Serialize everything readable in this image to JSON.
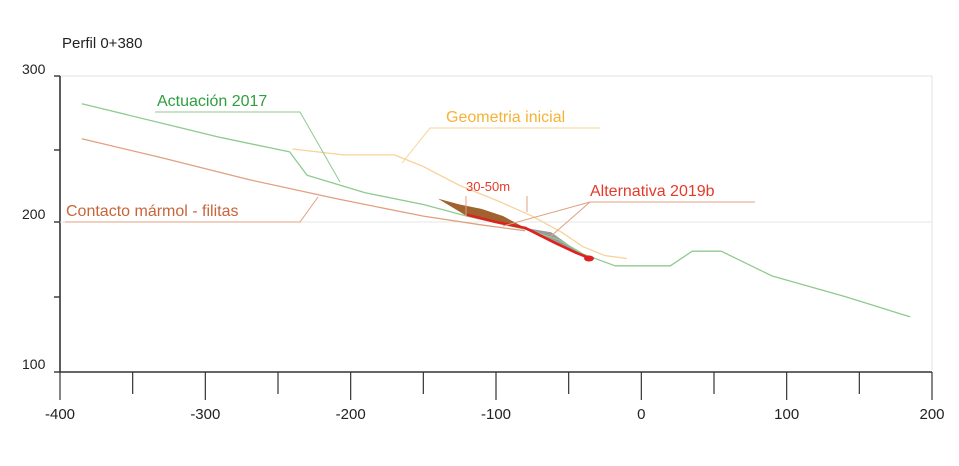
{
  "title": "Perfil 0+380",
  "y_tick_labels": [
    "300",
    "200",
    "100"
  ],
  "x_tick_labels": [
    "-400",
    "-300",
    "-200",
    "-100",
    "0",
    "100",
    "200"
  ],
  "annotations": {
    "actuacion": "Actuación 2017",
    "geometria": "Geometria inicial",
    "alternativa": "Alternativa 2019b",
    "contacto": "Contacto mármol -  filitas",
    "rango": "30-50m"
  },
  "colors": {
    "actuacion": "#2e9e3e",
    "geometria": "#f5b335",
    "alternativa": "#e53a2a",
    "contacto": "#c8643a",
    "actuacion_line": "#8fca8f",
    "geometria_line": "#f7d39a",
    "contacto_line": "#e0a080",
    "fill_brown": "#a0622e",
    "fill_gray": "#9a9a9a",
    "alternativa_line": "#e02020"
  },
  "chart_data": {
    "type": "line",
    "title": "Perfil 0+380",
    "xlabel": "",
    "ylabel": "",
    "xlim": [
      -400,
      200
    ],
    "ylim": [
      100,
      300
    ],
    "x_ticks": [
      -400,
      -300,
      -200,
      -100,
      0,
      100,
      200
    ],
    "y_ticks": [
      100,
      200,
      300
    ],
    "grid": false,
    "series": [
      {
        "name": "Actuación 2017",
        "color": "#8fca8f",
        "x": [
          -385,
          -290,
          -242,
          -230,
          -190,
          -150,
          -120,
          -80,
          -57,
          -40,
          -18,
          20,
          35,
          55,
          90,
          140,
          185
        ],
        "y": [
          281,
          258,
          248,
          232,
          220,
          212,
          204,
          195,
          188,
          178,
          170,
          170,
          180,
          180,
          163,
          149,
          135
        ]
      },
      {
        "name": "Geometria inicial",
        "color": "#f7d39a",
        "x": [
          -240,
          -205,
          -170,
          -150,
          -125,
          -100,
          -75,
          -55,
          -40,
          -25,
          -10
        ],
        "y": [
          250,
          246,
          246,
          238,
          225,
          215,
          204,
          193,
          183,
          177,
          175
        ]
      },
      {
        "name": "Contacto mármol -  filitas",
        "color": "#e0a080",
        "x": [
          -385,
          -330,
          -270,
          -210,
          -150,
          -110,
          -80
        ],
        "y": [
          257,
          244,
          229,
          216,
          204,
          198,
          194
        ]
      },
      {
        "name": "Alternativa 2019b",
        "color": "#e02020",
        "x": [
          -120,
          -100,
          -80,
          -60,
          -45,
          -35
        ],
        "y": [
          205,
          200,
          196,
          186,
          179,
          175
        ]
      }
    ]
  }
}
